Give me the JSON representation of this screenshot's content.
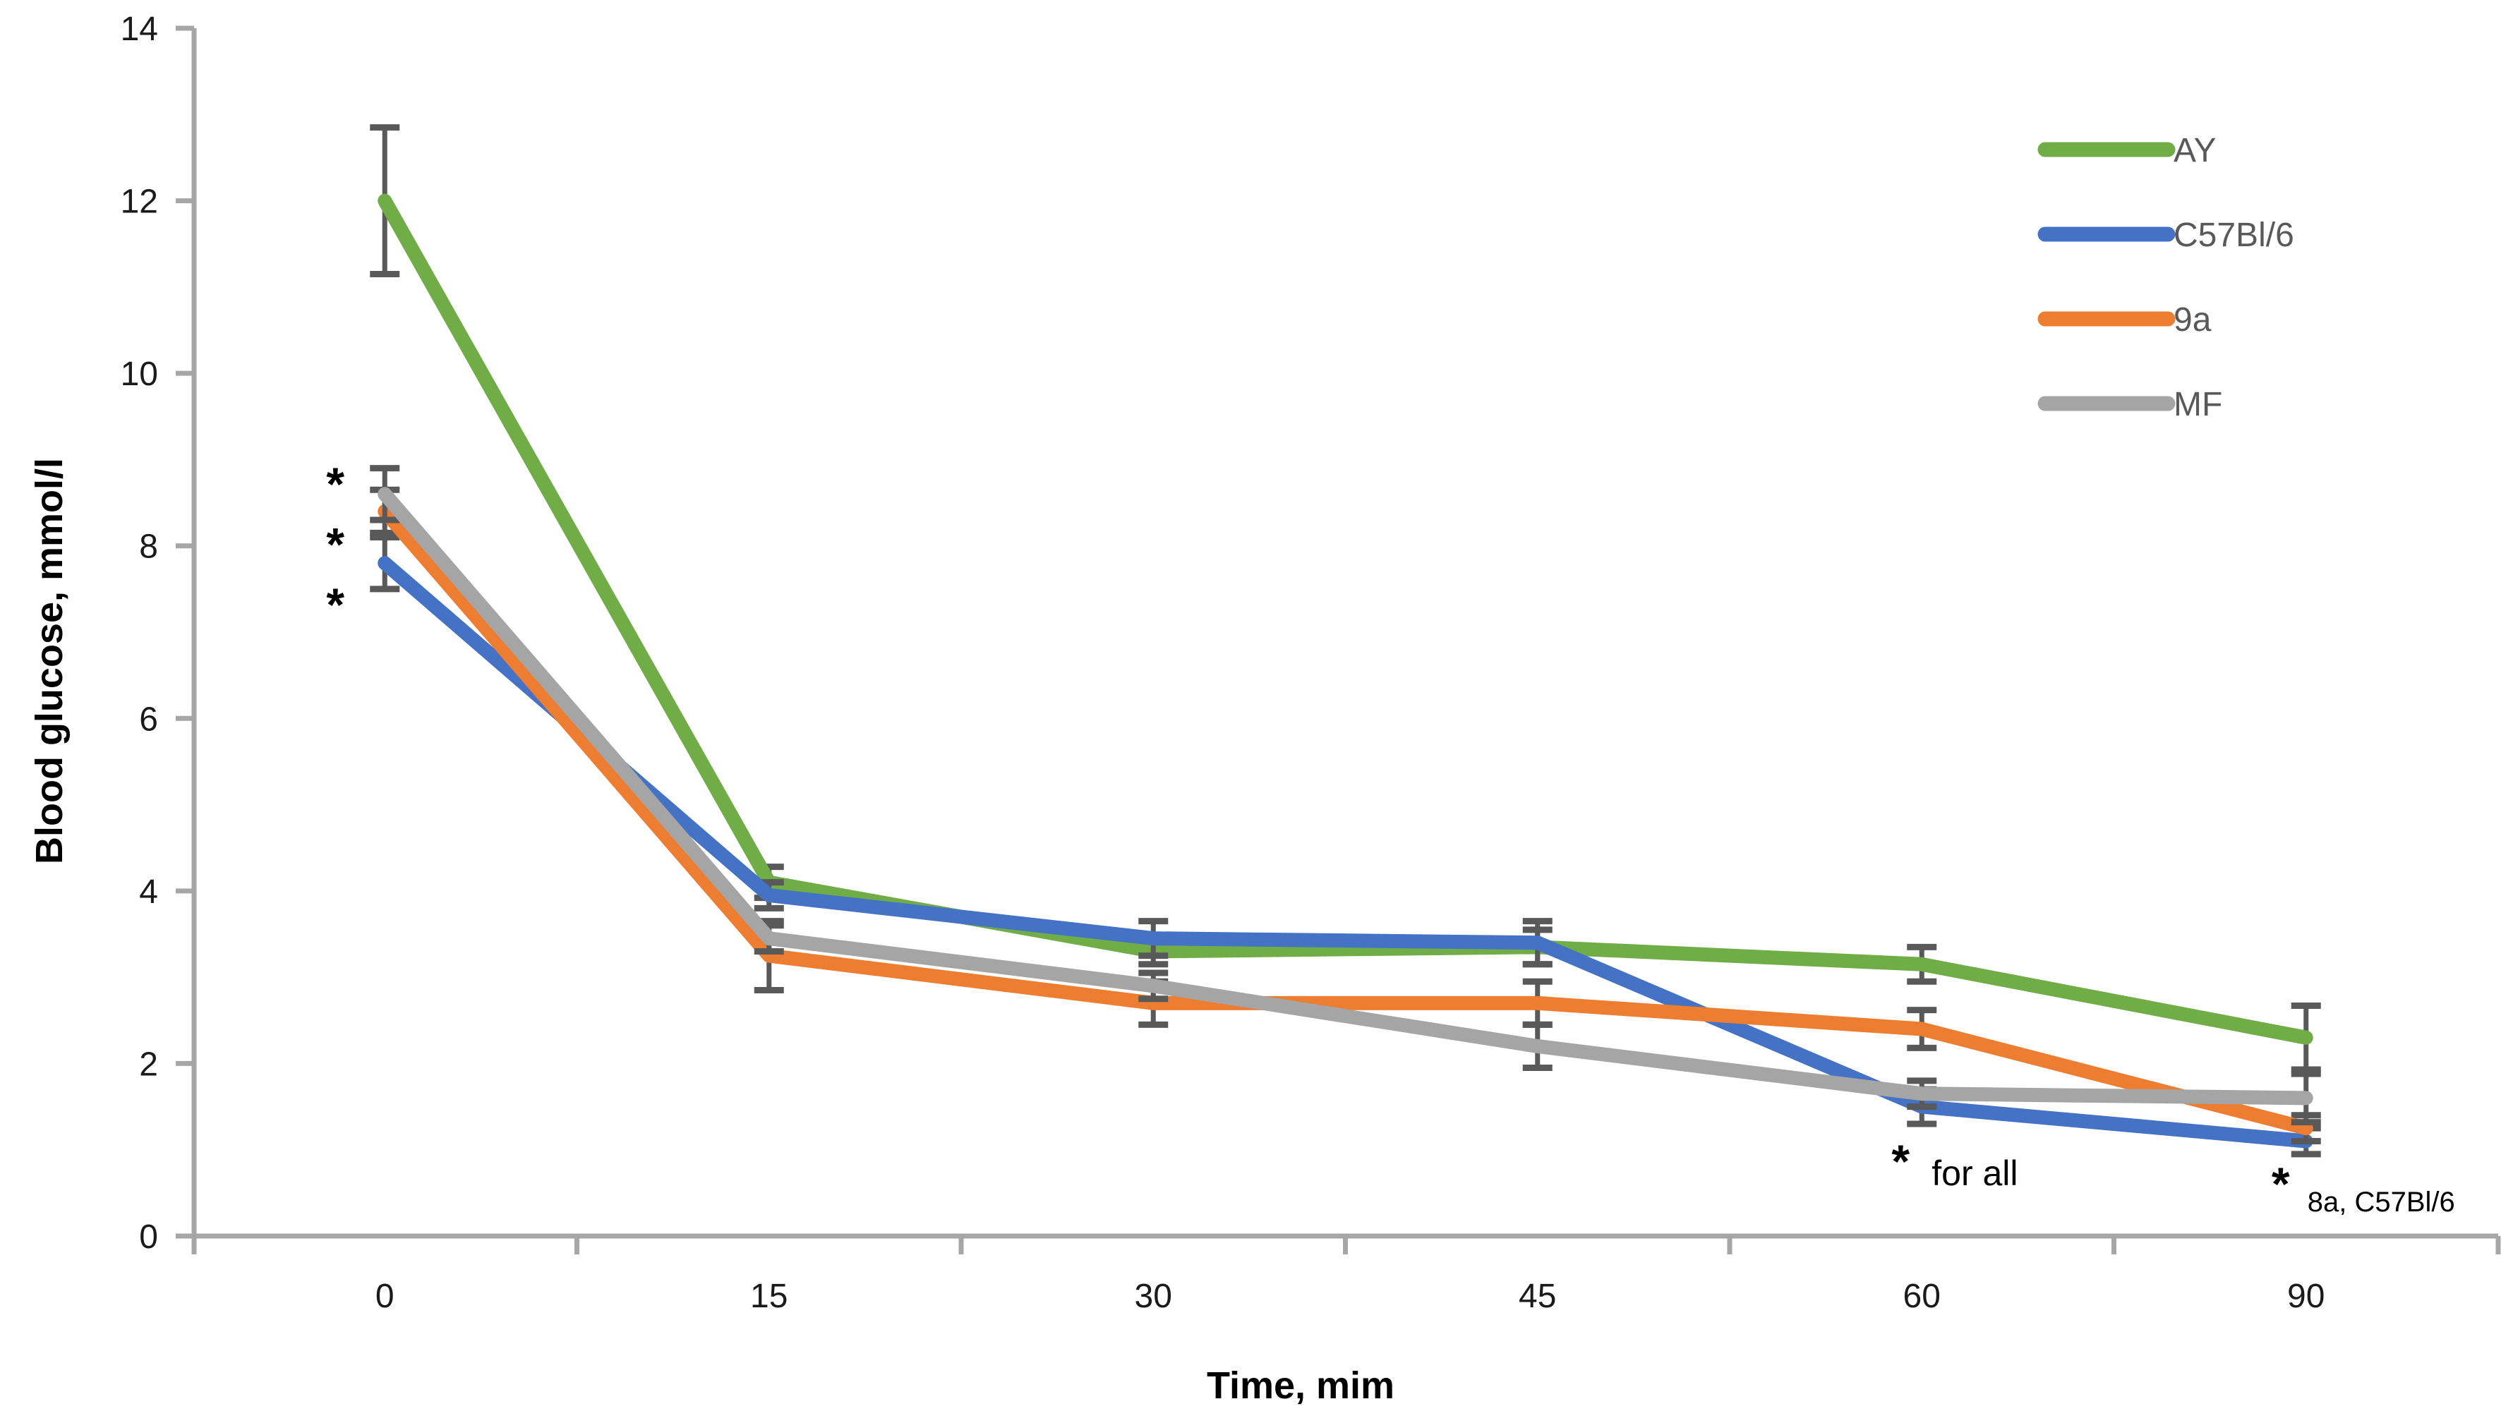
{
  "chart_data": {
    "type": "line",
    "title": "",
    "xlabel": "Time, mim",
    "ylabel": "Blood glucose, mmol/l",
    "x_categories": [
      "0",
      "15",
      "30",
      "45",
      "60",
      "90"
    ],
    "y_ticks": [
      0,
      2,
      4,
      6,
      8,
      10,
      12,
      14
    ],
    "ylim": [
      0,
      14
    ],
    "grid": false,
    "legend_position": "top-right",
    "series": [
      {
        "name": "AY",
        "color": "#70AD47",
        "values": [
          12.0,
          4.1,
          3.3,
          3.35,
          3.15,
          2.3
        ],
        "errors": [
          0.85,
          0.18,
          0.15,
          0.2,
          0.2,
          0.37
        ]
      },
      {
        "name": "C57Bl/6",
        "color": "#4472C4",
        "values": [
          7.8,
          3.95,
          3.45,
          3.4,
          1.5,
          1.1
        ],
        "errors": [
          0.3,
          0.15,
          0.2,
          0.25,
          0.2,
          0.15
        ]
      },
      {
        "name": "9a",
        "color": "#ED7D31",
        "values": [
          8.4,
          3.25,
          2.7,
          2.7,
          2.4,
          1.25
        ],
        "errors": [
          0.25,
          0.4,
          0.25,
          0.25,
          0.22,
          0.15
        ]
      },
      {
        "name": "MF",
        "color": "#A5A5A5",
        "values": [
          8.6,
          3.45,
          2.9,
          2.2,
          1.65,
          1.6
        ],
        "errors": [
          0.3,
          0.15,
          0.15,
          0.25,
          0.15,
          0.28
        ]
      }
    ]
  },
  "legend": {
    "items": [
      {
        "label": "AY",
        "color": "#70AD47"
      },
      {
        "label": "C57Bl/6",
        "color": "#4472C4"
      },
      {
        "label": "9a",
        "color": "#ED7D31"
      },
      {
        "label": "MF",
        "color": "#A5A5A5"
      }
    ]
  },
  "annotations": {
    "baseline_asterisks": {
      "symbol": "*",
      "x_category_index": 0,
      "at_values": [
        8.8,
        8.1,
        7.4
      ]
    },
    "note_60": {
      "symbol": "*",
      "label": "for all",
      "x_category_index": 4
    },
    "note_90": {
      "symbol": "*",
      "label": "8a, C57Bl/6",
      "x_category_index": 5
    }
  },
  "styles": {
    "axis_color": "#A6A6A6",
    "error_bar_color": "#595959",
    "tick_text_color": "#1a1a1a",
    "legend_text_color": "#595959",
    "background": "#ffffff"
  }
}
